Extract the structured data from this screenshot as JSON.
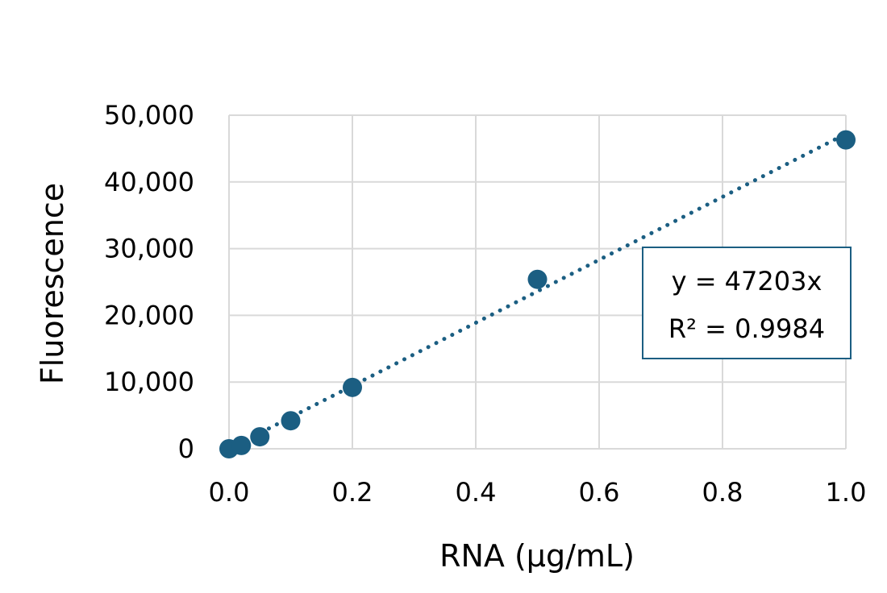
{
  "chart_data": {
    "type": "scatter",
    "title": "",
    "xlabel": "RNA (µg/mL)",
    "ylabel": "Fluorescence",
    "xlim": [
      0,
      1.0
    ],
    "ylim": [
      0,
      50000
    ],
    "x_ticks": [
      0.0,
      0.2,
      0.4,
      0.6,
      0.8,
      1.0
    ],
    "x_tick_labels": [
      "0.0",
      "0.2",
      "0.4",
      "0.6",
      "0.8",
      "1.0"
    ],
    "y_ticks": [
      0,
      10000,
      20000,
      30000,
      40000,
      50000
    ],
    "y_tick_labels": [
      "0",
      "10,000",
      "20,000",
      "30,000",
      "40,000",
      "50,000"
    ],
    "grid": true,
    "legend": "none",
    "series": [
      {
        "x": [
          0.0,
          0.02,
          0.05,
          0.1,
          0.2,
          0.5,
          1.0
        ],
        "y": [
          0,
          500,
          1800,
          4200,
          9200,
          25400,
          46300
        ],
        "color": "#1b5e82"
      }
    ],
    "trendline": {
      "type": "linear",
      "slope": 47203,
      "intercept": 0,
      "style": "dotted",
      "color": "#1b5e82"
    },
    "annotation": {
      "line1": "y = 47203x",
      "line2": "R² = 0.9984",
      "position": "right",
      "border_color": "#1b5e82"
    },
    "colors": {
      "marker": "#1b5e82",
      "grid": "#d9d9d9"
    }
  }
}
